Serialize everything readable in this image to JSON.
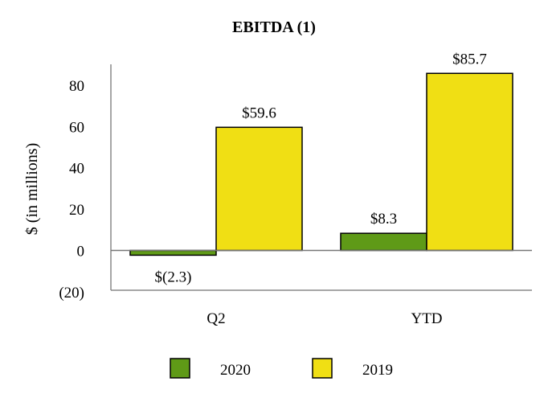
{
  "chart_data": {
    "type": "bar",
    "title": "EBITDA (1)",
    "xlabel": "",
    "ylabel": "$ (in millions)",
    "categories": [
      "Q2",
      "YTD"
    ],
    "ylim": [
      -20,
      90
    ],
    "yticks": [
      -20,
      0,
      20,
      40,
      60,
      80
    ],
    "ytick_labels": [
      "(20)",
      "0",
      "20",
      "40",
      "60",
      "80"
    ],
    "grid": false,
    "legend_position": "bottom",
    "series": [
      {
        "name": "2020",
        "color": "#5f9a17",
        "values": [
          -2.3,
          8.3
        ],
        "labels": [
          "$(2.3)",
          "$8.3"
        ]
      },
      {
        "name": "2019",
        "color": "#f0df14",
        "values": [
          59.6,
          85.7
        ],
        "labels": [
          "$59.6",
          "$85.7"
        ]
      }
    ]
  }
}
